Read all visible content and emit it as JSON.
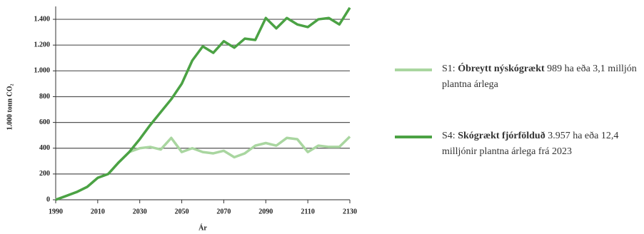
{
  "chart_data": {
    "type": "line",
    "ylabel": "1.000 tonn CO₂",
    "xlabel": "Ár",
    "x": [
      1990,
      1995,
      2000,
      2005,
      2010,
      2015,
      2020,
      2025,
      2030,
      2035,
      2040,
      2045,
      2050,
      2055,
      2060,
      2065,
      2070,
      2075,
      2080,
      2085,
      2090,
      2095,
      2100,
      2105,
      2110,
      2115,
      2120,
      2125,
      2130
    ],
    "xlim": [
      1990,
      2130
    ],
    "xticks": [
      1990,
      2010,
      2030,
      2050,
      2070,
      2090,
      2110,
      2130
    ],
    "ylim": [
      0,
      1500
    ],
    "yticks": [
      0,
      200,
      400,
      600,
      800,
      {
        "value": 1000,
        "label": "1.000"
      },
      {
        "value": 1200,
        "label": "1.200"
      },
      {
        "value": 1400,
        "label": "1.400"
      }
    ],
    "grid": true,
    "series": [
      {
        "name": "S1:",
        "bold": "Óbreytt nýskógrækt",
        "rest": "989 ha eða 3,1 milljón plantna árlega",
        "color": "#a9d6a0",
        "values": [
          0,
          30,
          60,
          100,
          170,
          200,
          290,
          370,
          400,
          410,
          390,
          480,
          370,
          400,
          370,
          360,
          380,
          330,
          360,
          420,
          440,
          420,
          480,
          470,
          370,
          420,
          410,
          410,
          490
        ]
      },
      {
        "name": "S4:",
        "bold": "Skógrækt fjórfölduð",
        "rest": "3.957 ha eða 12,4 milljónir plantna árlega frá 2023",
        "color": "#4ba244",
        "values": [
          0,
          30,
          60,
          100,
          170,
          200,
          290,
          370,
          470,
          580,
          680,
          780,
          900,
          1080,
          1190,
          1140,
          1230,
          1180,
          1250,
          1240,
          1410,
          1330,
          1410,
          1360,
          1340,
          1400,
          1410,
          1360,
          1490
        ]
      }
    ]
  }
}
